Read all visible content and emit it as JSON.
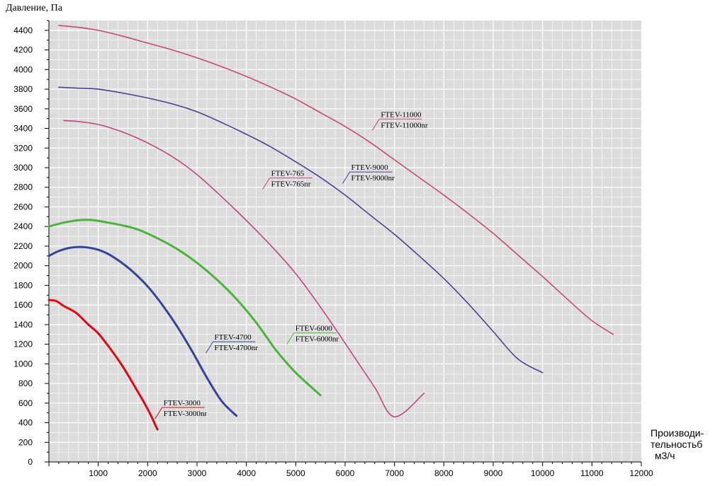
{
  "chart_data": {
    "type": "line",
    "title": "",
    "ylabel": "Давление, Па",
    "xlabel_lines": [
      "Производи-",
      "тельностьб",
      "м3/ч"
    ],
    "xlim": [
      0,
      12000
    ],
    "ylim": [
      0,
      4500
    ],
    "xticks": [
      1000,
      2000,
      3000,
      4000,
      5000,
      6000,
      7000,
      8000,
      9000,
      10000,
      11000,
      12000
    ],
    "yticks": [
      0,
      200,
      400,
      600,
      800,
      1000,
      1200,
      1400,
      1600,
      1800,
      2000,
      2200,
      2400,
      2600,
      2800,
      3000,
      3200,
      3400,
      3600,
      3800,
      4000,
      4200,
      4400
    ],
    "grid": true,
    "series": [
      {
        "labels": [
          "FTEV-3000",
          "FTEV-3000nr"
        ],
        "color": "#e30613",
        "points": [
          [
            0,
            1650
          ],
          [
            150,
            1640
          ],
          [
            300,
            1590
          ],
          [
            550,
            1520
          ],
          [
            800,
            1400
          ],
          [
            1000,
            1310
          ],
          [
            1250,
            1150
          ],
          [
            1500,
            970
          ],
          [
            1750,
            760
          ],
          [
            2000,
            540
          ],
          [
            2200,
            330
          ]
        ],
        "label_anchor": [
          2150,
          440
        ]
      },
      {
        "labels": [
          "FTEV-4700",
          "FTEV-4700nr"
        ],
        "color": "#33439a",
        "points": [
          [
            0,
            2100
          ],
          [
            200,
            2150
          ],
          [
            450,
            2185
          ],
          [
            700,
            2190
          ],
          [
            950,
            2170
          ],
          [
            1200,
            2120
          ],
          [
            1450,
            2040
          ],
          [
            1700,
            1940
          ],
          [
            2000,
            1790
          ],
          [
            2300,
            1600
          ],
          [
            2600,
            1380
          ],
          [
            2900,
            1130
          ],
          [
            3200,
            860
          ],
          [
            3500,
            620
          ],
          [
            3800,
            470
          ]
        ],
        "label_anchor": [
          3180,
          1110
        ]
      },
      {
        "labels": [
          "FTEV-6000",
          "FTEV-6000nr"
        ],
        "color": "#4cb33a",
        "points": [
          [
            0,
            2400
          ],
          [
            300,
            2440
          ],
          [
            600,
            2465
          ],
          [
            900,
            2465
          ],
          [
            1200,
            2440
          ],
          [
            1500,
            2410
          ],
          [
            1800,
            2370
          ],
          [
            2200,
            2280
          ],
          [
            2600,
            2170
          ],
          [
            3000,
            2030
          ],
          [
            3400,
            1860
          ],
          [
            3800,
            1660
          ],
          [
            4200,
            1420
          ],
          [
            4600,
            1140
          ],
          [
            5000,
            910
          ],
          [
            5500,
            680
          ]
        ],
        "label_anchor": [
          4820,
          1200
        ]
      },
      {
        "labels": [
          "FTEV-765",
          "FTEV-765nr"
        ],
        "color": "#c2457f",
        "points": [
          [
            300,
            3480
          ],
          [
            600,
            3470
          ],
          [
            1000,
            3440
          ],
          [
            1400,
            3380
          ],
          [
            1800,
            3300
          ],
          [
            2200,
            3200
          ],
          [
            2600,
            3080
          ],
          [
            3000,
            2930
          ],
          [
            3400,
            2750
          ],
          [
            3800,
            2560
          ],
          [
            4200,
            2360
          ],
          [
            4600,
            2150
          ],
          [
            5000,
            1920
          ],
          [
            5400,
            1650
          ],
          [
            5800,
            1360
          ],
          [
            6200,
            1060
          ],
          [
            6600,
            760
          ],
          [
            7000,
            460
          ],
          [
            7600,
            700
          ]
        ],
        "label_anchor": [
          4330,
          2780
        ]
      },
      {
        "labels": [
          "FTEV-9000",
          "FTEV-9000nr"
        ],
        "color": "#474394",
        "points": [
          [
            200,
            3820
          ],
          [
            600,
            3810
          ],
          [
            1000,
            3800
          ],
          [
            1500,
            3760
          ],
          [
            2000,
            3710
          ],
          [
            2500,
            3650
          ],
          [
            3000,
            3570
          ],
          [
            3500,
            3460
          ],
          [
            4000,
            3340
          ],
          [
            4500,
            3210
          ],
          [
            5000,
            3060
          ],
          [
            5500,
            2900
          ],
          [
            6000,
            2720
          ],
          [
            6500,
            2520
          ],
          [
            7000,
            2320
          ],
          [
            7500,
            2100
          ],
          [
            8000,
            1870
          ],
          [
            8500,
            1610
          ],
          [
            9000,
            1330
          ],
          [
            9500,
            1050
          ],
          [
            10000,
            910
          ]
        ],
        "label_anchor": [
          5950,
          2840
        ]
      },
      {
        "labels": [
          "FTEV-11000",
          "FTEV-11000nr"
        ],
        "color": "#c44b6e",
        "points": [
          [
            200,
            4450
          ],
          [
            600,
            4430
          ],
          [
            1000,
            4400
          ],
          [
            1500,
            4340
          ],
          [
            2000,
            4270
          ],
          [
            2500,
            4200
          ],
          [
            3000,
            4120
          ],
          [
            3500,
            4030
          ],
          [
            4000,
            3930
          ],
          [
            4500,
            3820
          ],
          [
            5000,
            3700
          ],
          [
            5500,
            3560
          ],
          [
            6000,
            3420
          ],
          [
            6500,
            3260
          ],
          [
            7000,
            3080
          ],
          [
            7500,
            2900
          ],
          [
            8000,
            2720
          ],
          [
            8500,
            2530
          ],
          [
            9000,
            2330
          ],
          [
            9500,
            2110
          ],
          [
            10000,
            1890
          ],
          [
            10500,
            1660
          ],
          [
            11000,
            1440
          ],
          [
            11430,
            1300
          ]
        ],
        "label_anchor": [
          6550,
          3380
        ]
      }
    ]
  }
}
